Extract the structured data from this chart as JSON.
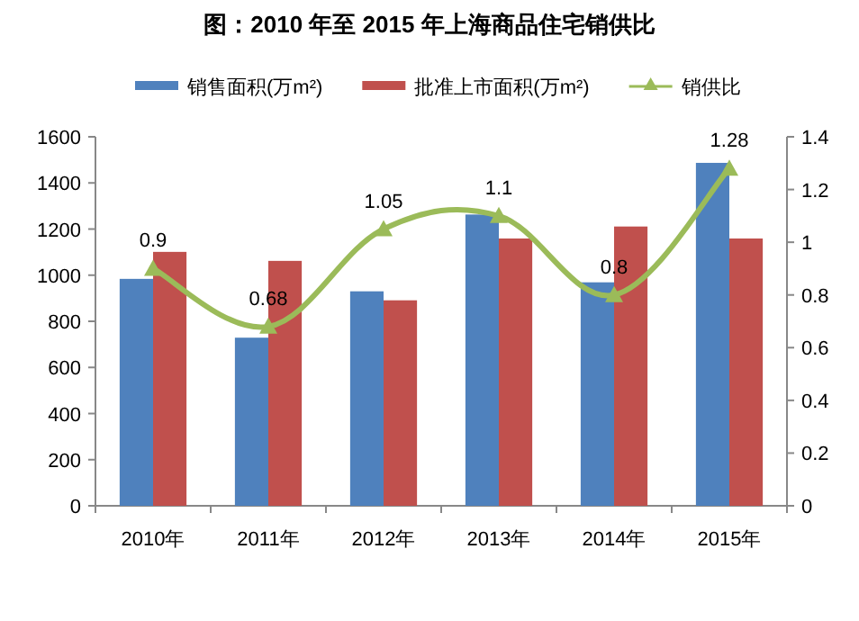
{
  "chart_data": {
    "type": "bar",
    "title": "图：2010 年至 2015 年上海商品住宅销供比",
    "categories": [
      "2010年",
      "2011年",
      "2012年",
      "2013年",
      "2014年",
      "2015年"
    ],
    "series": [
      {
        "name": "销售面积(万m²)",
        "color": "#4f81bd",
        "values": [
          984,
          729,
          930,
          1263,
          969,
          1487
        ]
      },
      {
        "name": "批准上市面积(万m²)",
        "color": "#c0504d",
        "values": [
          1101,
          1062,
          891,
          1159,
          1211,
          1159
        ]
      },
      {
        "name": "销供比",
        "type": "line",
        "axis": "y2",
        "color": "#9bbb59",
        "marker": "triangle",
        "data_labels": true,
        "values": [
          0.9,
          0.68,
          1.05,
          1.1,
          0.8,
          1.28
        ]
      }
    ],
    "ylim": [
      0,
      1600
    ],
    "yticks": [
      0,
      200,
      400,
      600,
      800,
      1000,
      1200,
      1400,
      1600
    ],
    "y2lim": [
      0,
      1.4
    ],
    "y2ticks": [
      0,
      0.2,
      0.4,
      0.6,
      0.8,
      1,
      1.2,
      1.4
    ],
    "grid": false,
    "legend": "top"
  }
}
